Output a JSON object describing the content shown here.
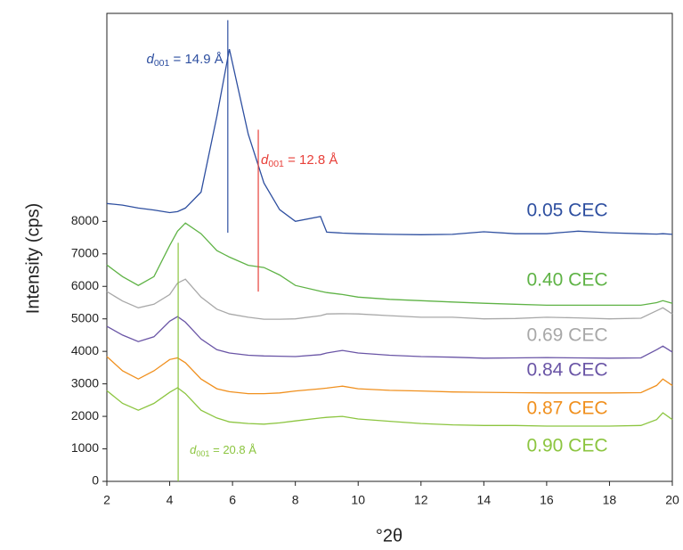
{
  "chart_data": {
    "type": "line",
    "xlabel": "°2θ",
    "ylabel": "Intensity (cps)",
    "xlim": [
      2,
      20
    ],
    "ylim": [
      0,
      14400
    ],
    "xticks": [
      2,
      4,
      6,
      8,
      10,
      12,
      14,
      16,
      18,
      20
    ],
    "yticks": [
      0,
      1000,
      2000,
      3000,
      4000,
      5000,
      6000,
      7000,
      8000
    ],
    "x": [
      2,
      2.5,
      3,
      3.5,
      4,
      4.25,
      4.5,
      5,
      5.5,
      5.9,
      6.5,
      7,
      7.5,
      8,
      8.8,
      9,
      9.5,
      10,
      11,
      12,
      13,
      14,
      15,
      16,
      17,
      18,
      19,
      19.5,
      19.7,
      20
    ],
    "series": [
      {
        "name": "0.05 CEC",
        "color": "#2e4fa0",
        "values": [
          8550,
          8500,
          8410,
          8350,
          8270,
          8300,
          8410,
          8900,
          11230,
          13300,
          10680,
          9180,
          8360,
          8000,
          8150,
          7670,
          7640,
          7620,
          7600,
          7590,
          7600,
          7680,
          7620,
          7620,
          7700,
          7650,
          7620,
          7610,
          7620,
          7600
        ]
      },
      {
        "name": "0.40 CEC",
        "color": "#5fb346",
        "values": [
          6660,
          6300,
          6030,
          6300,
          7260,
          7700,
          7950,
          7620,
          7100,
          6900,
          6650,
          6580,
          6350,
          6030,
          5850,
          5810,
          5750,
          5670,
          5600,
          5560,
          5520,
          5480,
          5450,
          5420,
          5420,
          5420,
          5420,
          5500,
          5560,
          5480
        ]
      },
      {
        "name": "0.69 CEC",
        "color": "#a8a8a8",
        "values": [
          5840,
          5550,
          5340,
          5450,
          5750,
          6100,
          6220,
          5670,
          5300,
          5150,
          5050,
          4990,
          4990,
          5000,
          5100,
          5150,
          5160,
          5150,
          5100,
          5050,
          5050,
          5000,
          5010,
          5050,
          5030,
          5000,
          5020,
          5250,
          5340,
          5150
        ]
      },
      {
        "name": "0.84 CEC",
        "color": "#6a55a6",
        "values": [
          4770,
          4500,
          4300,
          4450,
          4930,
          5070,
          4900,
          4380,
          4050,
          3950,
          3880,
          3860,
          3850,
          3840,
          3900,
          3950,
          4030,
          3950,
          3880,
          3840,
          3820,
          3790,
          3800,
          3810,
          3800,
          3790,
          3800,
          4050,
          4160,
          3980
        ]
      },
      {
        "name": "0.87 CEC",
        "color": "#f0901e",
        "values": [
          3840,
          3400,
          3150,
          3400,
          3750,
          3800,
          3650,
          3150,
          2850,
          2760,
          2700,
          2700,
          2720,
          2780,
          2850,
          2870,
          2930,
          2850,
          2800,
          2780,
          2750,
          2740,
          2730,
          2720,
          2720,
          2720,
          2730,
          2950,
          3150,
          2950
        ]
      },
      {
        "name": "0.90 CEC",
        "color": "#8cc540",
        "values": [
          2790,
          2400,
          2190,
          2400,
          2740,
          2880,
          2700,
          2190,
          1950,
          1830,
          1780,
          1760,
          1800,
          1860,
          1950,
          1970,
          2000,
          1920,
          1850,
          1780,
          1740,
          1720,
          1720,
          1700,
          1700,
          1700,
          1720,
          1900,
          2110,
          1900
        ]
      }
    ],
    "annotations": [
      {
        "var": "d",
        "sub": "001",
        "text": " = 14.9 Å",
        "color": "#2e4fa0",
        "x": 5.85,
        "y": [
          7650,
          14190
        ]
      },
      {
        "var": "d",
        "sub": "001",
        "text": " = 12.8 Å",
        "color": "#e8403a",
        "x": 6.82,
        "y": [
          5840,
          10820
        ]
      },
      {
        "var": "d",
        "sub": "001",
        "text": " = 20.8 Å",
        "color": "#8cc540",
        "x": 4.27,
        "y": [
          0,
          7340
        ]
      }
    ]
  }
}
